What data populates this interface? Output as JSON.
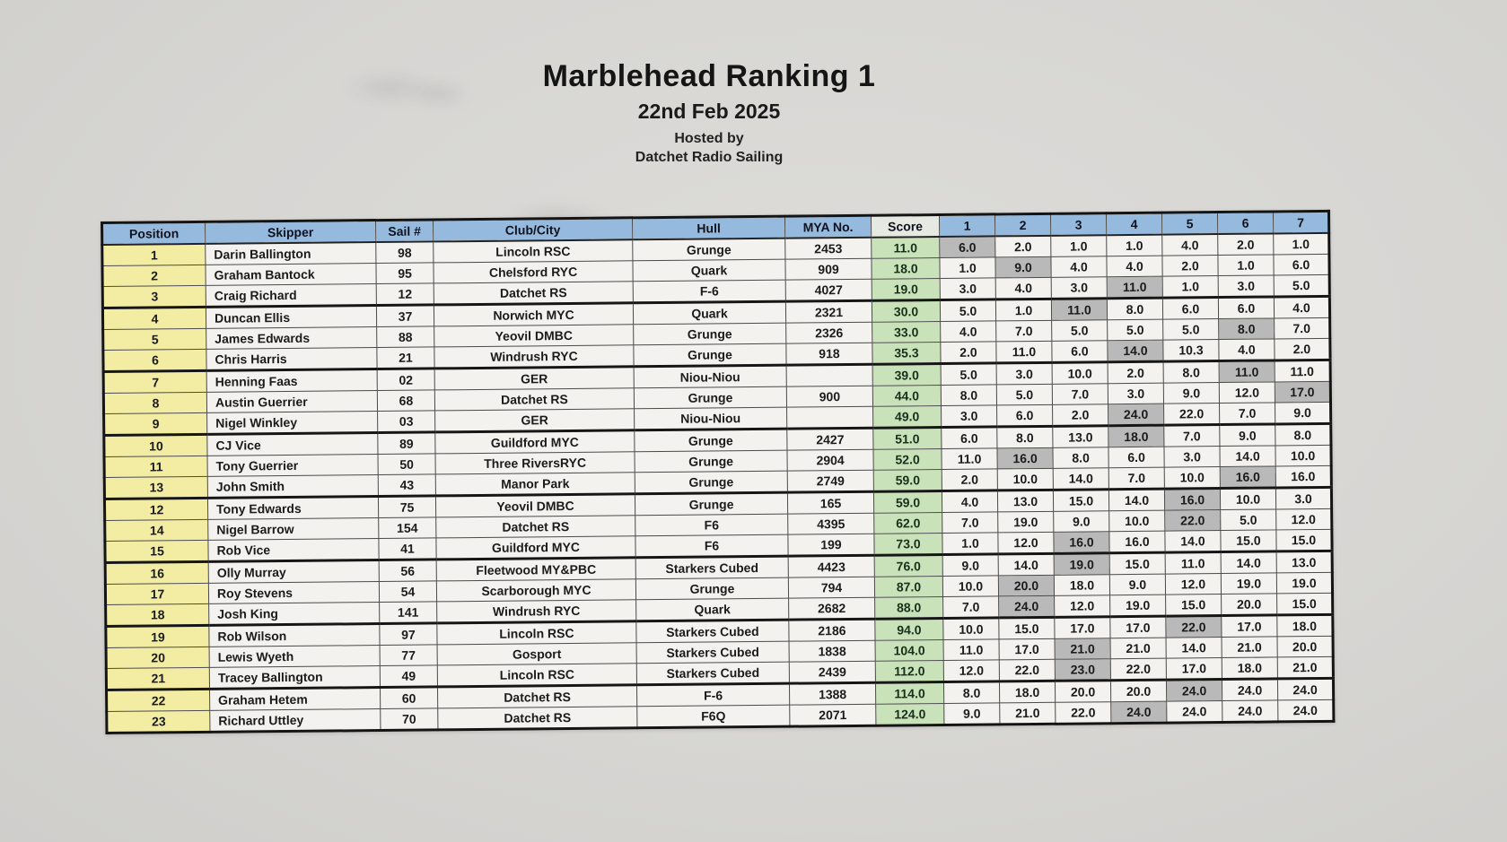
{
  "page": {
    "title": "Marblehead Ranking 1",
    "date": "22nd Feb 2025",
    "hosted_by_label": "Hosted by",
    "host_name": "Datchet Radio Sailing"
  },
  "colors": {
    "header_blue": "#96badd",
    "position_yellow": "#f2eda2",
    "score_green": "#c9e2ba",
    "discard_gray": "#b9b9b9",
    "paper_gray": "#d7d6d3",
    "cell_white": "#f3f2ef"
  },
  "table": {
    "columns": [
      "Position",
      "Skipper",
      "Sail #",
      "Club/City",
      "Hull",
      "MYA No.",
      "Score",
      "1",
      "2",
      "3",
      "4",
      "5",
      "6",
      "7"
    ],
    "rows": [
      {
        "position": "1",
        "skipper": "Darin Ballington",
        "sail": "98",
        "club": "Lincoln RSC",
        "hull": "Grunge",
        "mya": "2453",
        "score": "11.0",
        "races": [
          "6.0",
          "2.0",
          "1.0",
          "1.0",
          "4.0",
          "2.0",
          "1.0"
        ],
        "discard_index": 0,
        "group_end": false
      },
      {
        "position": "2",
        "skipper": "Graham Bantock",
        "sail": "95",
        "club": "Chelsford RYC",
        "hull": "Quark",
        "mya": "909",
        "score": "18.0",
        "races": [
          "1.0",
          "9.0",
          "4.0",
          "4.0",
          "2.0",
          "1.0",
          "6.0"
        ],
        "discard_index": 1,
        "group_end": false
      },
      {
        "position": "3",
        "skipper": "Craig Richard",
        "sail": "12",
        "club": "Datchet RS",
        "hull": "F-6",
        "mya": "4027",
        "score": "19.0",
        "races": [
          "3.0",
          "4.0",
          "3.0",
          "11.0",
          "1.0",
          "3.0",
          "5.0"
        ],
        "discard_index": 3,
        "group_end": true
      },
      {
        "position": "4",
        "skipper": "Duncan Ellis",
        "sail": "37",
        "club": "Norwich MYC",
        "hull": "Quark",
        "mya": "2321",
        "score": "30.0",
        "races": [
          "5.0",
          "1.0",
          "11.0",
          "8.0",
          "6.0",
          "6.0",
          "4.0"
        ],
        "discard_index": 2,
        "group_end": false
      },
      {
        "position": "5",
        "skipper": "James Edwards",
        "sail": "88",
        "club": "Yeovil DMBC",
        "hull": "Grunge",
        "mya": "2326",
        "score": "33.0",
        "races": [
          "4.0",
          "7.0",
          "5.0",
          "5.0",
          "5.0",
          "8.0",
          "7.0"
        ],
        "discard_index": 5,
        "group_end": false
      },
      {
        "position": "6",
        "skipper": "Chris Harris",
        "sail": "21",
        "club": "Windrush RYC",
        "hull": "Grunge",
        "mya": "918",
        "score": "35.3",
        "races": [
          "2.0",
          "11.0",
          "6.0",
          "14.0",
          "10.3",
          "4.0",
          "2.0"
        ],
        "discard_index": 3,
        "group_end": true
      },
      {
        "position": "7",
        "skipper": "Henning Faas",
        "sail": "02",
        "club": "GER",
        "hull": "Niou-Niou",
        "mya": "",
        "score": "39.0",
        "races": [
          "5.0",
          "3.0",
          "10.0",
          "2.0",
          "8.0",
          "11.0",
          "11.0"
        ],
        "discard_index": 5,
        "group_end": false
      },
      {
        "position": "8",
        "skipper": "Austin Guerrier",
        "sail": "68",
        "club": "Datchet RS",
        "hull": "Grunge",
        "mya": "900",
        "score": "44.0",
        "races": [
          "8.0",
          "5.0",
          "7.0",
          "3.0",
          "9.0",
          "12.0",
          "17.0"
        ],
        "discard_index": 6,
        "group_end": false
      },
      {
        "position": "9",
        "skipper": "Nigel Winkley",
        "sail": "03",
        "club": "GER",
        "hull": "Niou-Niou",
        "mya": "",
        "score": "49.0",
        "races": [
          "3.0",
          "6.0",
          "2.0",
          "24.0",
          "22.0",
          "7.0",
          "9.0"
        ],
        "discard_index": 3,
        "group_end": true
      },
      {
        "position": "10",
        "skipper": "CJ Vice",
        "sail": "89",
        "club": "Guildford MYC",
        "hull": "Grunge",
        "mya": "2427",
        "score": "51.0",
        "races": [
          "6.0",
          "8.0",
          "13.0",
          "18.0",
          "7.0",
          "9.0",
          "8.0"
        ],
        "discard_index": 3,
        "group_end": false
      },
      {
        "position": "11",
        "skipper": "Tony Guerrier",
        "sail": "50",
        "club": "Three RiversRYC",
        "hull": "Grunge",
        "mya": "2904",
        "score": "52.0",
        "races": [
          "11.0",
          "16.0",
          "8.0",
          "6.0",
          "3.0",
          "14.0",
          "10.0"
        ],
        "discard_index": 1,
        "group_end": false
      },
      {
        "position": "13",
        "skipper": "John Smith",
        "sail": "43",
        "club": "Manor Park",
        "hull": "Grunge",
        "mya": "2749",
        "score": "59.0",
        "races": [
          "2.0",
          "10.0",
          "14.0",
          "7.0",
          "10.0",
          "16.0",
          "16.0"
        ],
        "discard_index": 5,
        "group_end": true
      },
      {
        "position": "12",
        "skipper": "Tony Edwards",
        "sail": "75",
        "club": "Yeovil DMBC",
        "hull": "Grunge",
        "mya": "165",
        "score": "59.0",
        "races": [
          "4.0",
          "13.0",
          "15.0",
          "14.0",
          "16.0",
          "10.0",
          "3.0"
        ],
        "discard_index": 4,
        "group_end": false
      },
      {
        "position": "14",
        "skipper": "Nigel Barrow",
        "sail": "154",
        "club": "Datchet RS",
        "hull": "F6",
        "mya": "4395",
        "score": "62.0",
        "races": [
          "7.0",
          "19.0",
          "9.0",
          "10.0",
          "22.0",
          "5.0",
          "12.0"
        ],
        "discard_index": 4,
        "group_end": false
      },
      {
        "position": "15",
        "skipper": "Rob Vice",
        "sail": "41",
        "club": "Guildford MYC",
        "hull": "F6",
        "mya": "199",
        "score": "73.0",
        "races": [
          "1.0",
          "12.0",
          "16.0",
          "16.0",
          "14.0",
          "15.0",
          "15.0"
        ],
        "discard_index": 2,
        "group_end": true
      },
      {
        "position": "16",
        "skipper": "Olly Murray",
        "sail": "56",
        "club": "Fleetwood MY&PBC",
        "hull": "Starkers Cubed",
        "mya": "4423",
        "score": "76.0",
        "races": [
          "9.0",
          "14.0",
          "19.0",
          "15.0",
          "11.0",
          "14.0",
          "13.0"
        ],
        "discard_index": 2,
        "group_end": false
      },
      {
        "position": "17",
        "skipper": "Roy Stevens",
        "sail": "54",
        "club": "Scarborough MYC",
        "hull": "Grunge",
        "mya": "794",
        "score": "87.0",
        "races": [
          "10.0",
          "20.0",
          "18.0",
          "9.0",
          "12.0",
          "19.0",
          "19.0"
        ],
        "discard_index": 1,
        "group_end": false
      },
      {
        "position": "18",
        "skipper": "Josh King",
        "sail": "141",
        "club": "Windrush RYC",
        "hull": "Quark",
        "mya": "2682",
        "score": "88.0",
        "races": [
          "7.0",
          "24.0",
          "12.0",
          "19.0",
          "15.0",
          "20.0",
          "15.0"
        ],
        "discard_index": 1,
        "group_end": true
      },
      {
        "position": "19",
        "skipper": "Rob Wilson",
        "sail": "97",
        "club": "Lincoln RSC",
        "hull": "Starkers Cubed",
        "mya": "2186",
        "score": "94.0",
        "races": [
          "10.0",
          "15.0",
          "17.0",
          "17.0",
          "22.0",
          "17.0",
          "18.0"
        ],
        "discard_index": 4,
        "group_end": false
      },
      {
        "position": "20",
        "skipper": "Lewis Wyeth",
        "sail": "77",
        "club": "Gosport",
        "hull": "Starkers Cubed",
        "mya": "1838",
        "score": "104.0",
        "races": [
          "11.0",
          "17.0",
          "21.0",
          "21.0",
          "14.0",
          "21.0",
          "20.0"
        ],
        "discard_index": 2,
        "group_end": false
      },
      {
        "position": "21",
        "skipper": "Tracey Ballington",
        "sail": "49",
        "club": "Lincoln RSC",
        "hull": "Starkers Cubed",
        "mya": "2439",
        "score": "112.0",
        "races": [
          "12.0",
          "22.0",
          "23.0",
          "22.0",
          "17.0",
          "18.0",
          "21.0"
        ],
        "discard_index": 2,
        "group_end": true
      },
      {
        "position": "22",
        "skipper": "Graham Hetem",
        "sail": "60",
        "club": "Datchet RS",
        "hull": "F-6",
        "mya": "1388",
        "score": "114.0",
        "races": [
          "8.0",
          "18.0",
          "20.0",
          "20.0",
          "24.0",
          "24.0",
          "24.0"
        ],
        "discard_index": 4,
        "group_end": false
      },
      {
        "position": "23",
        "skipper": "Richard Uttley",
        "sail": "70",
        "club": "Datchet RS",
        "hull": "F6Q",
        "mya": "2071",
        "score": "124.0",
        "races": [
          "9.0",
          "21.0",
          "22.0",
          "24.0",
          "24.0",
          "24.0",
          "24.0"
        ],
        "discard_index": 3,
        "group_end": false
      }
    ]
  }
}
